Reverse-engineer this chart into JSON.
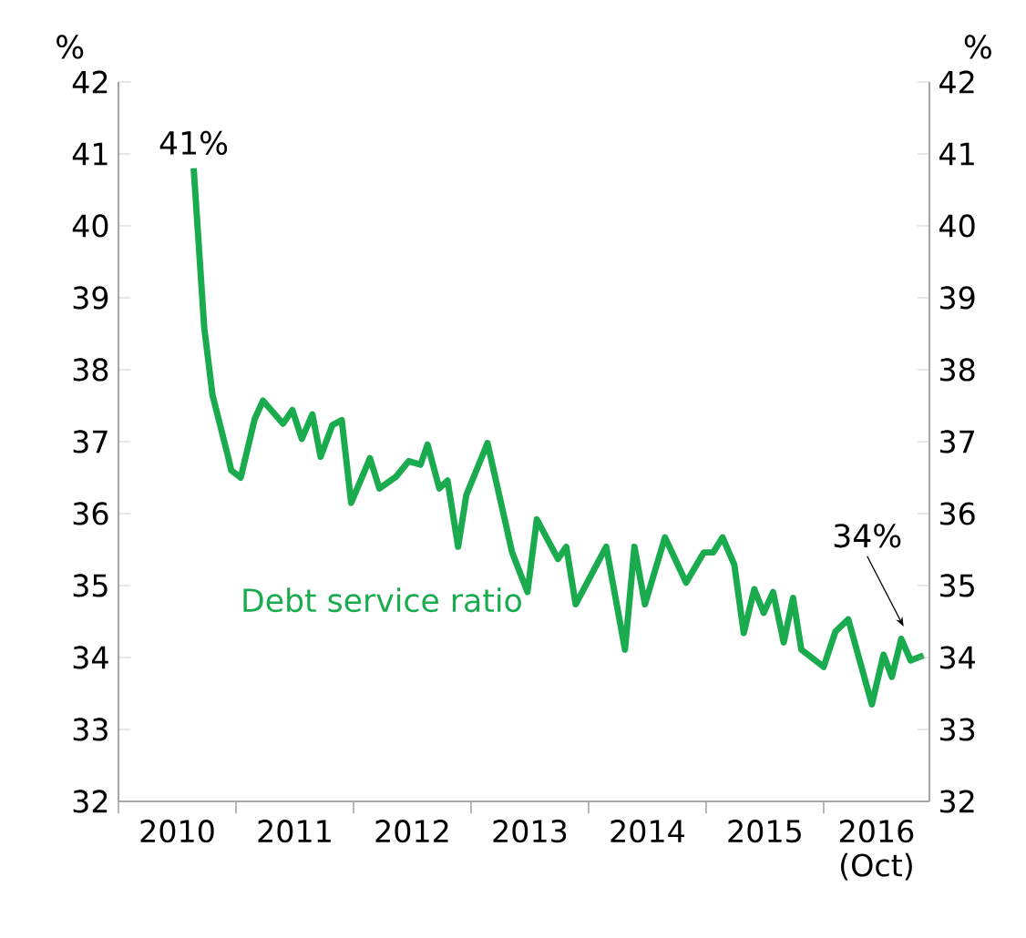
{
  "chart_data": {
    "type": "line",
    "ylabel": "%",
    "y2label": "%",
    "xlim": [
      2010,
      2016.9
    ],
    "ylim": [
      32,
      42
    ],
    "y2lim": [
      32,
      42
    ],
    "xticks": [
      {
        "value": 2010,
        "label": null
      },
      {
        "value": 2011,
        "label": null
      },
      {
        "value": 2012,
        "label": null
      },
      {
        "value": 2013,
        "label": null
      },
      {
        "value": 2014,
        "label": null
      },
      {
        "value": 2015,
        "label": null
      },
      {
        "value": 2016,
        "label": null
      },
      {
        "value": 2010.5,
        "label": "2010"
      },
      {
        "value": 2011.5,
        "label": "2011"
      },
      {
        "value": 2012.5,
        "label": "2012"
      },
      {
        "value": 2013.5,
        "label": "2013"
      },
      {
        "value": 2014.5,
        "label": "2014"
      },
      {
        "value": 2015.5,
        "label": "2015"
      },
      {
        "value": 2016.45,
        "label": "2016 (Oct)"
      }
    ],
    "yticks": [
      32,
      33,
      34,
      35,
      36,
      37,
      38,
      39,
      40,
      41,
      42
    ],
    "y2ticks": [
      32,
      33,
      34,
      35,
      36,
      37,
      38,
      39,
      40,
      41,
      42
    ],
    "grid": false,
    "marker": "none",
    "line_style": "solid",
    "annotations": [
      {
        "text": "41%",
        "x": 2010.64,
        "y": 40.8
      },
      {
        "text": "34%",
        "x": 2016.66,
        "y": 34.26
      }
    ],
    "series": [
      {
        "name": "Debt service ratio",
        "color": "#1aab4f",
        "x": [
          2010.64,
          2010.73,
          2010.8,
          2010.93,
          2010.96,
          2011.04,
          2011.16,
          2011.23,
          2011.4,
          2011.48,
          2011.56,
          2011.65,
          2011.72,
          2011.82,
          2011.9,
          2011.98,
          2012.14,
          2012.22,
          2012.36,
          2012.47,
          2012.57,
          2012.63,
          2012.73,
          2012.8,
          2012.89,
          2012.96,
          2013.14,
          2013.35,
          2013.48,
          2013.56,
          2013.74,
          2013.81,
          2013.89,
          2014.15,
          2014.31,
          2014.39,
          2014.48,
          2014.65,
          2014.83,
          2014.98,
          2015.06,
          2015.14,
          2015.24,
          2015.32,
          2015.41,
          2015.49,
          2015.57,
          2015.66,
          2015.74,
          2015.81,
          2016.0,
          2016.1,
          2016.21,
          2016.41,
          2016.51,
          2016.58,
          2016.66,
          2016.74,
          2016.85
        ],
        "values": [
          40.8,
          38.58,
          37.65,
          36.81,
          36.6,
          36.5,
          37.32,
          37.57,
          37.25,
          37.44,
          37.04,
          37.38,
          36.79,
          37.23,
          37.3,
          36.15,
          36.77,
          36.35,
          36.51,
          36.73,
          36.68,
          36.96,
          36.35,
          36.46,
          35.54,
          36.26,
          36.98,
          35.46,
          34.91,
          35.92,
          35.37,
          35.54,
          34.74,
          35.54,
          34.11,
          35.54,
          34.74,
          35.67,
          35.04,
          35.46,
          35.46,
          35.67,
          35.29,
          34.34,
          34.95,
          34.62,
          34.91,
          34.21,
          34.83,
          34.11,
          33.87,
          34.36,
          34.53,
          33.35,
          34.04,
          33.73,
          34.26,
          33.96,
          34.03
        ]
      }
    ]
  }
}
